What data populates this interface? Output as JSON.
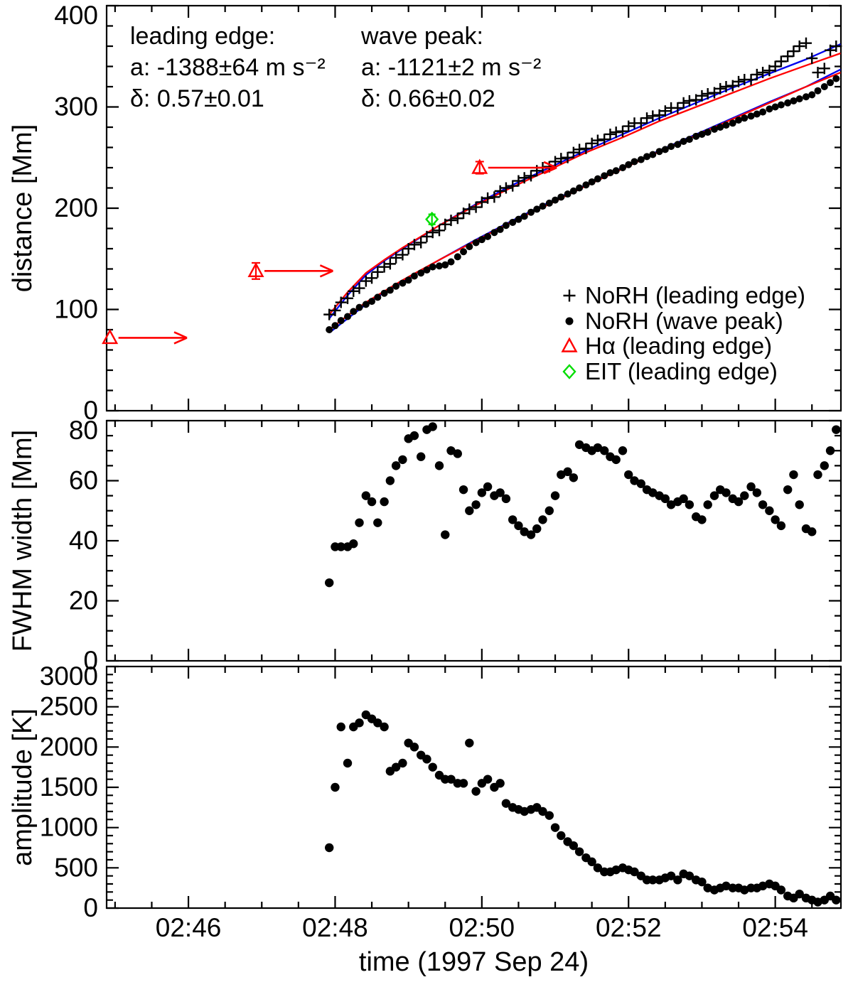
{
  "figure": {
    "xlabel": "time (1997 Sep 24)",
    "x_range": [
      44.885,
      54.895
    ],
    "x_ticks": [
      {
        "t": 46,
        "label": "02:46"
      },
      {
        "t": 48,
        "label": "02:48"
      },
      {
        "t": 50,
        "label": "02:50"
      },
      {
        "t": 52,
        "label": "02:52"
      },
      {
        "t": 54,
        "label": "02:54"
      }
    ],
    "x_minor_step": 0.5,
    "time_unit": "decimal minutes after 02:00 UT",
    "sample_times": [
      47.92,
      48.0,
      48.08,
      48.17,
      48.25,
      48.33,
      48.42,
      48.5,
      48.58,
      48.67,
      48.75,
      48.83,
      48.92,
      49.0,
      49.08,
      49.17,
      49.25,
      49.33,
      49.42,
      49.5,
      49.58,
      49.67,
      49.75,
      49.83,
      49.92,
      50.0,
      50.08,
      50.17,
      50.25,
      50.33,
      50.42,
      50.5,
      50.58,
      50.67,
      50.75,
      50.83,
      50.92,
      51.0,
      51.08,
      51.17,
      51.25,
      51.33,
      51.42,
      51.5,
      51.58,
      51.67,
      51.75,
      51.83,
      51.92,
      52.0,
      52.08,
      52.17,
      52.25,
      52.33,
      52.42,
      52.5,
      52.58,
      52.67,
      52.75,
      52.83,
      52.92,
      53.0,
      53.08,
      53.17,
      53.25,
      53.33,
      53.42,
      53.5,
      53.58,
      53.67,
      53.75,
      53.83,
      53.92,
      54.0,
      54.08,
      54.17,
      54.25,
      54.33,
      54.42,
      54.5,
      54.58,
      54.67,
      54.75,
      54.83
    ]
  },
  "colors": {
    "red": "#ff0000",
    "green": "#00dd00",
    "blue": "#0000ee",
    "black": "#000000"
  },
  "chart_data": [
    {
      "type": "scatter",
      "panel": "distance",
      "ylabel": "distance [Mm]",
      "ylim": [
        0,
        400
      ],
      "yticks": [
        {
          "v": 0,
          "label": "0"
        },
        {
          "v": 100,
          "label": "100"
        },
        {
          "v": 200,
          "label": "200"
        },
        {
          "v": 300,
          "label": "300"
        },
        {
          "v": 400,
          "label": "400"
        }
      ],
      "annotations": [
        {
          "lines": [
            "leading edge:",
            "a: -1388±64 m s⁻²",
            "δ: 0.57±0.01"
          ]
        },
        {
          "lines": [
            "wave peak:",
            "a: -1121±2 m s⁻²",
            "δ: 0.66±0.02"
          ]
        }
      ],
      "legend": [
        {
          "marker": "plus",
          "color": "#000000",
          "label": "NoRH (leading edge)"
        },
        {
          "marker": "dot",
          "color": "#000000",
          "label": "NoRH (wave peak)"
        },
        {
          "marker": "triangle",
          "color": "#ff0000",
          "label": "Hα (leading edge)"
        },
        {
          "marker": "diamond",
          "color": "#00dd00",
          "label": "EIT (leading edge)"
        }
      ],
      "series": [
        {
          "name": "NoRH (leading edge)",
          "marker": "plus",
          "color": "#000000",
          "values": [
            95,
            99,
            107,
            111,
            118,
            121,
            128,
            131,
            137,
            142,
            145,
            151,
            154,
            160,
            164,
            166,
            172,
            176,
            178,
            184,
            188,
            190,
            195,
            199,
            201,
            206,
            210,
            211,
            217,
            220,
            222,
            227,
            230,
            232,
            237,
            240,
            241,
            246,
            249,
            250,
            255,
            258,
            259,
            264,
            267,
            268,
            273,
            275,
            276,
            281,
            284,
            284,
            289,
            291,
            292,
            296,
            299,
            299,
            304,
            306,
            307,
            311,
            313,
            314,
            318,
            320,
            321,
            325,
            327,
            327,
            332,
            334,
            336,
            340,
            345,
            350,
            355,
            360,
            363,
            348,
            334,
            338,
            356,
            360
          ]
        },
        {
          "name": "NoRH (wave peak)",
          "marker": "dot",
          "color": "#000000",
          "values": [
            80,
            84,
            89,
            93,
            98,
            102,
            105,
            108,
            112,
            116,
            119,
            123,
            126,
            129,
            133,
            136,
            139,
            142,
            143,
            144,
            147,
            152,
            157,
            162,
            166,
            169,
            172,
            176,
            179,
            183,
            186,
            189,
            192,
            196,
            199,
            202,
            205,
            208,
            211,
            214,
            217,
            220,
            223,
            226,
            229,
            232,
            235,
            237,
            240,
            243,
            246,
            248,
            251,
            253,
            256,
            258,
            261,
            263,
            266,
            268,
            271,
            273,
            275,
            278,
            280,
            282,
            284,
            287,
            289,
            291,
            293,
            295,
            298,
            300,
            302,
            304,
            306,
            308,
            310,
            312,
            316,
            320,
            324,
            328
          ]
        }
      ],
      "fits": [
        {
          "name": "leading edge power-law fit (blue)",
          "color": "#0000ee",
          "t": [
            47.92,
            48.17,
            48.42,
            48.67,
            48.92,
            49.42,
            49.92,
            50.42,
            50.92,
            51.42,
            51.92,
            52.42,
            52.92,
            53.42,
            53.92,
            54.42,
            54.89
          ],
          "values": [
            91,
            114,
            134,
            148,
            160,
            183,
            204,
            223,
            240,
            257,
            273,
            289,
            304,
            319,
            333,
            347,
            362
          ]
        },
        {
          "name": "wave peak power-law fit (blue)",
          "color": "#0000ee",
          "t": [
            47.92,
            48.17,
            48.42,
            48.67,
            48.92,
            49.42,
            49.92,
            50.42,
            50.92,
            51.42,
            51.92,
            52.42,
            52.92,
            53.42,
            53.92,
            54.42,
            54.89
          ],
          "values": [
            77,
            91,
            105,
            117,
            128,
            149,
            169,
            188,
            206,
            223,
            240,
            257,
            273,
            289,
            305,
            320,
            337
          ]
        },
        {
          "name": "leading edge power-law fit (red)",
          "color": "#ff0000",
          "t": [
            47.92,
            48.17,
            48.42,
            48.67,
            48.92,
            49.42,
            49.92,
            50.42,
            50.92,
            51.42,
            51.92,
            52.42,
            52.92,
            53.42,
            53.92,
            54.42,
            54.89
          ],
          "values": [
            95,
            117,
            136,
            149,
            161,
            183,
            203,
            221,
            238,
            255,
            270,
            286,
            300,
            314,
            328,
            341,
            353
          ]
        },
        {
          "name": "wave peak power-law fit (red)",
          "color": "#ff0000",
          "t": [
            47.92,
            48.17,
            48.42,
            48.67,
            48.92,
            49.42,
            49.92,
            50.42,
            50.92,
            51.42,
            51.92,
            52.42,
            52.92,
            53.42,
            53.92,
            54.42,
            54.89
          ],
          "values": [
            80,
            94,
            107,
            118,
            129,
            149,
            168,
            187,
            204,
            222,
            239,
            256,
            272,
            288,
            304,
            320,
            334
          ]
        }
      ],
      "halpha_points": [
        {
          "t": 44.93,
          "d": 72,
          "err": 0,
          "arrow_to": 45.98
        },
        {
          "t": 46.92,
          "d": 138,
          "err": 8,
          "arrow_to": 47.97
        },
        {
          "t": 49.97,
          "d": 240,
          "err": 6,
          "arrow_to": 51.02
        }
      ],
      "eit_point": {
        "t": 49.32,
        "d": 189,
        "err": 5
      }
    },
    {
      "type": "scatter",
      "panel": "fwhm",
      "ylabel": "FWHM width [Mm]",
      "ylim": [
        0,
        80
      ],
      "yticks": [
        {
          "v": 0,
          "label": "0"
        },
        {
          "v": 20,
          "label": "20"
        },
        {
          "v": 40,
          "label": "40"
        },
        {
          "v": 60,
          "label": "60"
        },
        {
          "v": 80,
          "label": "80"
        }
      ],
      "series": [
        {
          "name": "FWHM width",
          "marker": "dot",
          "color": "#000000",
          "values": [
            26,
            38,
            38,
            38,
            39,
            46,
            55,
            53,
            46,
            53,
            60,
            65,
            67,
            74,
            75,
            68,
            77,
            78,
            65,
            42,
            70,
            69,
            57,
            50,
            52,
            56,
            58,
            55,
            56,
            54,
            47,
            45,
            43,
            42,
            44,
            47,
            50,
            55,
            62,
            63,
            61,
            72,
            71,
            70,
            71,
            70,
            68,
            67,
            70,
            62,
            60,
            59,
            57,
            56,
            55,
            54,
            52,
            53,
            54,
            52,
            48,
            47,
            52,
            55,
            57,
            56,
            54,
            53,
            55,
            58,
            56,
            52,
            50,
            47,
            45,
            57,
            62,
            52,
            44,
            43,
            62,
            65,
            70,
            77
          ]
        }
      ]
    },
    {
      "type": "scatter",
      "panel": "amplitude",
      "ylabel": "amplitude [K]",
      "ylim": [
        0,
        3000
      ],
      "yticks": [
        {
          "v": 0,
          "label": "0"
        },
        {
          "v": 500,
          "label": "500"
        },
        {
          "v": 1000,
          "label": "1000"
        },
        {
          "v": 1500,
          "label": "1500"
        },
        {
          "v": 2000,
          "label": "2000"
        },
        {
          "v": 2500,
          "label": "2500"
        },
        {
          "v": 3000,
          "label": "3000"
        }
      ],
      "series": [
        {
          "name": "amplitude",
          "marker": "dot",
          "color": "#000000",
          "values": [
            750,
            1500,
            2250,
            1800,
            2250,
            2300,
            2400,
            2350,
            2300,
            2250,
            1700,
            1750,
            1800,
            2050,
            2000,
            1900,
            1850,
            1750,
            1650,
            1600,
            1600,
            1550,
            1550,
            2050,
            1450,
            1550,
            1600,
            1500,
            1550,
            1300,
            1250,
            1225,
            1200,
            1225,
            1250,
            1200,
            1150,
            1000,
            900,
            825,
            775,
            700,
            625,
            575,
            500,
            450,
            450,
            475,
            500,
            475,
            450,
            400,
            350,
            350,
            350,
            375,
            400,
            350,
            425,
            400,
            350,
            325,
            250,
            225,
            250,
            275,
            250,
            250,
            225,
            250,
            250,
            275,
            300,
            275,
            225,
            150,
            125,
            175,
            125,
            100,
            75,
            100,
            150,
            100
          ]
        }
      ]
    }
  ]
}
